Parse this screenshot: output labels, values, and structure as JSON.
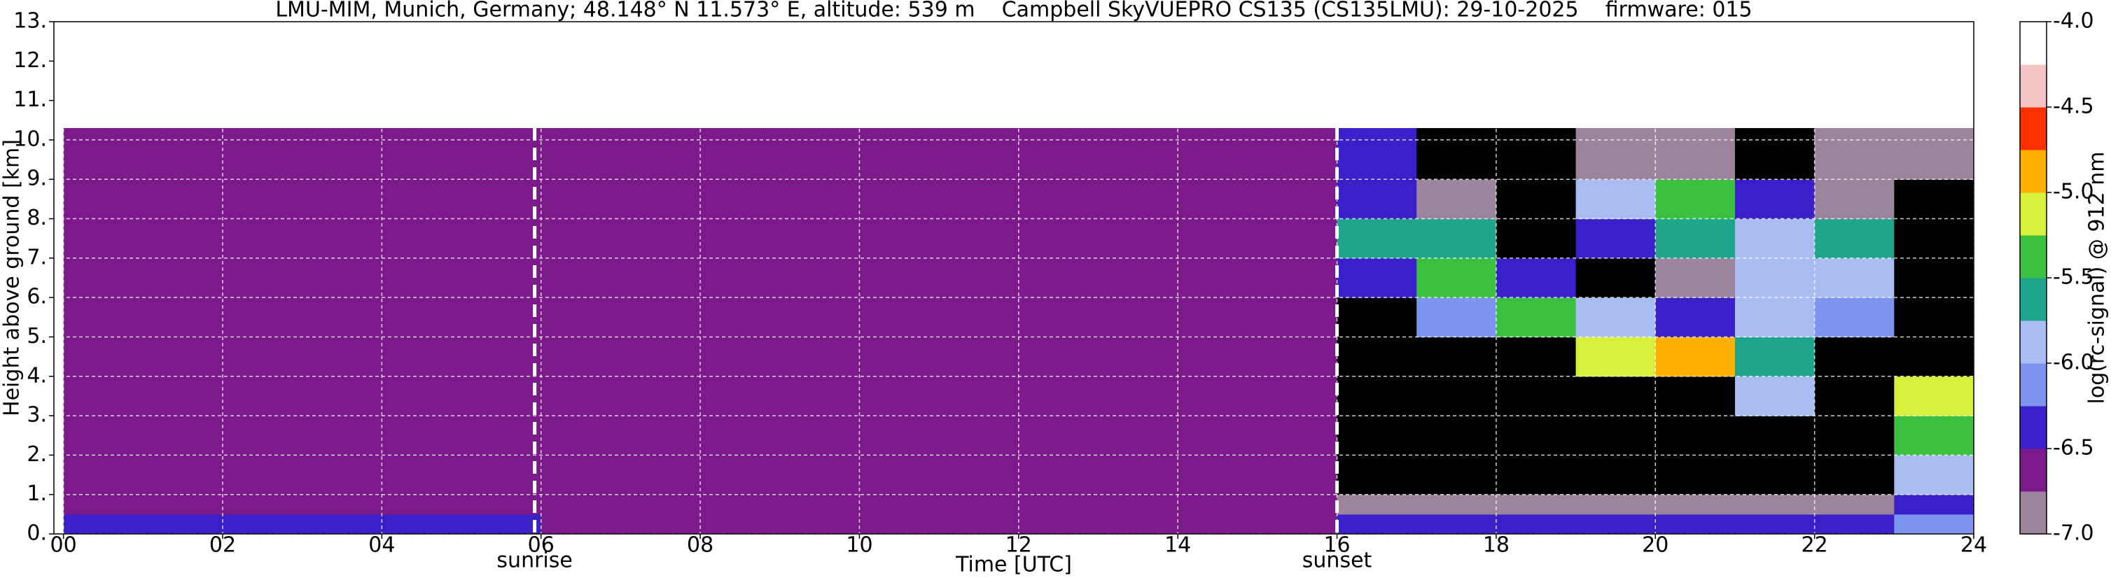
{
  "chart_data": {
    "type": "heatmap",
    "title": "LMU-MIM, Munich, Germany; 48.148° N 11.573° E, altitude: 539 m    Campbell SkyVUEPRO CS135 (CS135LMU): 29-10-2025    firmware: 015",
    "x_label": "Time [UTC]",
    "y_label": "Height above ground [km]",
    "colorbar_label": "log(rc-signal) @ 912 nm",
    "xlim": [
      -0.12,
      24
    ],
    "ylim": [
      0,
      13
    ],
    "xticks": [
      {
        "value": 0,
        "label": "00"
      },
      {
        "value": 2,
        "label": "02"
      },
      {
        "value": 4,
        "label": "04"
      },
      {
        "value": 6,
        "label": "06"
      },
      {
        "value": 8,
        "label": "08"
      },
      10,
      12,
      14,
      16,
      18,
      20,
      22,
      24
    ],
    "yticks": [
      {
        "value": 0,
        "label": "0."
      },
      {
        "value": 1,
        "label": "1."
      },
      {
        "value": 2,
        "label": "2."
      },
      {
        "value": 3,
        "label": "3."
      },
      {
        "value": 4,
        "label": "4."
      },
      {
        "value": 5,
        "label": "5."
      },
      {
        "value": 6,
        "label": "6."
      },
      {
        "value": 7,
        "label": "7."
      },
      {
        "value": 8,
        "label": "8."
      },
      {
        "value": 9,
        "label": "9."
      },
      {
        "value": 10,
        "label": "10."
      },
      {
        "value": 11,
        "label": "11."
      },
      {
        "value": 12,
        "label": "12."
      },
      {
        "value": 13,
        "label": "13."
      }
    ],
    "grid": true,
    "clim": [
      -7,
      -4
    ],
    "cticks": [
      {
        "value": -4,
        "label": "-4.0"
      },
      {
        "value": -4.5,
        "label": "-4.5"
      },
      {
        "value": -5,
        "label": "-5.0"
      },
      {
        "value": -5.5,
        "label": "-5.5"
      },
      {
        "value": -6,
        "label": "-6.0"
      },
      {
        "value": -6.5,
        "label": "-6.5"
      },
      {
        "value": -7,
        "label": "-7.0"
      }
    ],
    "colormap": [
      "#9c849c",
      "#7c1a8c",
      "#3a20c8",
      "#7d95f0",
      "#a9bdf2",
      "#1fa58c",
      "#3cc040",
      "#d6f03c",
      "#ffb000",
      "#ff3000",
      "#f2c4c4",
      "#ffffff"
    ],
    "under_color": "#000000",
    "x_edges": [
      0,
      1,
      2,
      3,
      4,
      5,
      6,
      7,
      8,
      9,
      10,
      11,
      12,
      13,
      14,
      15,
      16,
      17,
      18,
      19,
      20,
      21,
      22,
      23,
      24
    ],
    "y_edges": [
      0,
      0.5,
      1,
      2,
      3,
      4,
      5,
      6,
      7,
      8,
      9,
      10.3
    ],
    "z": [
      [
        -6.3,
        -6.3,
        -6.35,
        -6.4,
        -6.45,
        -6.5,
        -6.6,
        -6.65,
        -6.7,
        -6.7,
        -6.7,
        -6.65,
        -6.65,
        -6.6,
        -6.6,
        -6.55,
        -6.5,
        -6.45,
        -6.45,
        -6.4,
        -6.4,
        -6.4,
        -6.45,
        -6.2
      ],
      [
        -6.55,
        -6.6,
        -6.65,
        -6.7,
        -6.75,
        -6.75,
        -6.75,
        -6.75,
        -6.75,
        -6.75,
        -6.75,
        -6.75,
        -6.75,
        -6.75,
        -6.75,
        -6.75,
        -6.8,
        -6.85,
        -6.85,
        -6.85,
        -6.8,
        -6.85,
        -6.85,
        -6.3
      ],
      [
        -6.75,
        -6.75,
        -6.75,
        -6.75,
        -6.75,
        -6.75,
        -6.75,
        -6.75,
        -6.75,
        -6.75,
        -6.75,
        -6.75,
        -6.75,
        -6.75,
        -6.75,
        -6.75,
        -7.1,
        -7.2,
        -7.2,
        -7.2,
        -7.1,
        -7.2,
        -7.3,
        -5.8
      ],
      [
        -6.6,
        -6.75,
        -6.75,
        -6.75,
        -6.75,
        -6.75,
        -6.75,
        -6.75,
        -6.75,
        -6.75,
        -6.75,
        -6.75,
        -6.75,
        -6.75,
        -6.75,
        -6.75,
        -7.5,
        -7.5,
        -7.5,
        -7.5,
        -7.5,
        -7.5,
        -7.5,
        -5.5
      ],
      [
        -6.75,
        -6.75,
        -6.75,
        -6.75,
        -6.75,
        -6.75,
        -6.75,
        -6.75,
        -6.75,
        -6.75,
        -6.75,
        -6.75,
        -6.75,
        -6.75,
        -6.75,
        -6.75,
        -7.5,
        -7.5,
        -7.5,
        -7.5,
        -7.5,
        -6.0,
        -7.5,
        -5.2
      ],
      [
        -6.75,
        -6.75,
        -6.75,
        -6.75,
        -6.75,
        -6.75,
        -6.75,
        -6.75,
        -6.75,
        -6.75,
        -6.75,
        -6.75,
        -6.75,
        -6.75,
        -6.75,
        -6.75,
        -7.5,
        -7.5,
        -7.3,
        -5.2,
        -5.0,
        -5.6,
        -7.4,
        -7.5
      ],
      [
        -6.75,
        -6.75,
        -6.75,
        -6.75,
        -6.75,
        -6.75,
        -6.75,
        -6.75,
        -6.75,
        -6.75,
        -6.75,
        -6.75,
        -6.75,
        -6.75,
        -6.75,
        -6.75,
        -7.5,
        -6.2,
        -5.3,
        -6.0,
        -6.3,
        -5.8,
        -6.2,
        -7.5
      ],
      [
        -6.75,
        -6.75,
        -6.75,
        -6.75,
        -6.75,
        -6.75,
        -6.75,
        -6.75,
        -6.75,
        -6.75,
        -6.75,
        -6.75,
        -6.75,
        -6.75,
        -6.75,
        -6.75,
        -6.5,
        -5.3,
        -6.4,
        -7.4,
        -7.0,
        -6.0,
        -5.8,
        -7.5
      ],
      [
        -6.75,
        -6.75,
        -6.75,
        -6.75,
        -6.75,
        -6.75,
        -6.75,
        -6.75,
        -6.75,
        -6.75,
        -6.75,
        -6.75,
        -6.75,
        -6.75,
        -6.75,
        -6.75,
        -5.6,
        -5.6,
        -7.3,
        -6.5,
        -5.6,
        -5.8,
        -5.7,
        -7.5
      ],
      [
        -6.75,
        -6.75,
        -6.75,
        -6.75,
        -6.75,
        -6.75,
        -6.75,
        -6.75,
        -6.75,
        -6.75,
        -6.6,
        -6.6,
        -6.6,
        -6.6,
        -6.6,
        -6.6,
        -6.3,
        -6.8,
        -7.4,
        -6.0,
        -5.4,
        -6.3,
        -6.8,
        -7.5
      ],
      [
        -6.75,
        -6.75,
        -6.75,
        -6.75,
        -6.75,
        -6.75,
        -6.75,
        -6.6,
        -6.6,
        -6.6,
        -6.6,
        -6.6,
        -6.6,
        -6.6,
        -6.6,
        -6.6,
        -6.5,
        -7.3,
        -7.4,
        -7.0,
        -6.8,
        -7.3,
        -7.0,
        -6.8
      ]
    ],
    "annotations": [
      {
        "text": "sunrise",
        "x": 5.92
      },
      {
        "text": "sunset",
        "x": 16.0
      }
    ]
  }
}
